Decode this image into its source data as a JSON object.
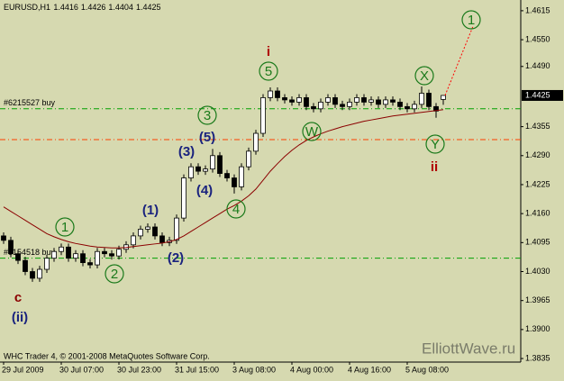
{
  "chart_data": {
    "type": "candlestick",
    "title": "EURUSD,H1",
    "categories": [
      "29 Jul 2009",
      null,
      null,
      null,
      null,
      null,
      null,
      null,
      "30 Jul 07:00",
      null,
      null,
      null,
      null,
      null,
      null,
      null,
      "30 Jul 23:00",
      null,
      null,
      null,
      null,
      null,
      null,
      null,
      "31 Jul 15:00",
      null,
      null,
      null,
      null,
      null,
      null,
      null,
      "3 Aug 08:00",
      null,
      null,
      null,
      null,
      null,
      null,
      null,
      "4 Aug 00:00",
      null,
      null,
      null,
      null,
      null,
      null,
      null,
      "4 Aug 16:00",
      null,
      null,
      null,
      null,
      null,
      null,
      null,
      "5 Aug 08:00",
      null,
      null,
      null,
      null,
      null
    ],
    "open": [
      1.411,
      1.41,
      1.407,
      1.4055,
      1.403,
      1.4015,
      1.4035,
      1.406,
      1.4075,
      1.4085,
      1.406,
      1.407,
      1.405,
      1.4045,
      1.4075,
      1.407,
      1.4065,
      1.408,
      1.409,
      1.411,
      1.4125,
      1.413,
      1.411,
      1.4095,
      1.41,
      1.415,
      1.424,
      1.4265,
      1.4255,
      1.426,
      1.429,
      1.425,
      1.424,
      1.422,
      1.4265,
      1.43,
      1.434,
      1.442,
      1.4435,
      1.442,
      1.4415,
      1.441,
      1.442,
      1.44,
      1.4395,
      1.441,
      1.442,
      1.4405,
      1.44,
      1.441,
      1.442,
      1.441,
      1.4415,
      1.4405,
      1.4415,
      1.441,
      1.44,
      1.4395,
      1.4405,
      1.443,
      1.44,
      1.4416
    ],
    "high": [
      1.4118,
      1.4108,
      1.4078,
      1.4063,
      1.4038,
      1.4043,
      1.4068,
      1.4083,
      1.4093,
      1.4093,
      1.4078,
      1.4078,
      1.4058,
      1.4083,
      1.4083,
      1.4078,
      1.4088,
      1.4098,
      1.4118,
      1.4133,
      1.4138,
      1.4138,
      1.4118,
      1.4108,
      1.4158,
      1.4248,
      1.4273,
      1.4273,
      1.4268,
      1.4305,
      1.4298,
      1.4258,
      1.4248,
      1.4273,
      1.4308,
      1.4348,
      1.4428,
      1.4443,
      1.4443,
      1.4428,
      1.4423,
      1.4428,
      1.4428,
      1.4408,
      1.4418,
      1.4428,
      1.4428,
      1.4413,
      1.4418,
      1.4428,
      1.4428,
      1.4423,
      1.4423,
      1.4423,
      1.4423,
      1.4418,
      1.4408,
      1.4413,
      1.4445,
      1.4438,
      1.4408,
      1.4426
    ],
    "low": [
      1.4092,
      1.4062,
      1.4047,
      1.4022,
      1.4007,
      1.4007,
      1.4027,
      1.4052,
      1.4067,
      1.4052,
      1.4052,
      1.4042,
      1.4037,
      1.4037,
      1.4062,
      1.4057,
      1.4057,
      1.4072,
      1.4082,
      1.4102,
      1.4117,
      1.4102,
      1.4087,
      1.4087,
      1.4092,
      1.4142,
      1.4232,
      1.4247,
      1.4247,
      1.4252,
      1.4242,
      1.4232,
      1.4205,
      1.4212,
      1.4257,
      1.4292,
      1.4332,
      1.4412,
      1.4412,
      1.4407,
      1.4402,
      1.4402,
      1.4392,
      1.4387,
      1.4387,
      1.4402,
      1.4397,
      1.4392,
      1.4392,
      1.4402,
      1.4402,
      1.4402,
      1.4397,
      1.4397,
      1.4402,
      1.4392,
      1.4387,
      1.4387,
      1.4397,
      1.4392,
      1.4375,
      1.4404
    ],
    "close": [
      1.41,
      1.407,
      1.4055,
      1.403,
      1.4015,
      1.4035,
      1.406,
      1.4075,
      1.4085,
      1.406,
      1.407,
      1.405,
      1.4045,
      1.4075,
      1.407,
      1.4065,
      1.408,
      1.409,
      1.411,
      1.4125,
      1.413,
      1.411,
      1.4095,
      1.41,
      1.415,
      1.424,
      1.4265,
      1.4255,
      1.426,
      1.429,
      1.425,
      1.424,
      1.422,
      1.4265,
      1.43,
      1.434,
      1.442,
      1.4435,
      1.442,
      1.4415,
      1.441,
      1.442,
      1.44,
      1.4395,
      1.441,
      1.442,
      1.4405,
      1.44,
      1.441,
      1.442,
      1.441,
      1.4415,
      1.4405,
      1.4415,
      1.441,
      1.44,
      1.4395,
      1.4405,
      1.443,
      1.44,
      1.439,
      1.4425
    ],
    "candle_color": "#000000",
    "up_fill": "#ffffff",
    "moving_average": {
      "color": "#8b0000",
      "values": [
        1.4175,
        1.4165,
        1.4155,
        1.4145,
        1.4135,
        1.4125,
        1.4115,
        1.4108,
        1.4102,
        1.4097,
        1.4093,
        1.409,
        1.4087,
        1.4085,
        1.4084,
        1.4083,
        1.4083,
        1.4084,
        1.4086,
        1.4088,
        1.409,
        1.4092,
        1.4094,
        1.4097,
        1.4102,
        1.411,
        1.412,
        1.413,
        1.414,
        1.415,
        1.416,
        1.417,
        1.4178,
        1.4188,
        1.42,
        1.4215,
        1.4235,
        1.4255,
        1.4272,
        1.4288,
        1.4302,
        1.4314,
        1.4324,
        1.4332,
        1.4339,
        1.4345,
        1.435,
        1.4355,
        1.4359,
        1.4363,
        1.4367,
        1.437,
        1.4373,
        1.4376,
        1.4379,
        1.4381,
        1.4383,
        1.4385,
        1.4387,
        1.4389,
        1.4391,
        1.4393
      ]
    },
    "ylim": [
      1.3827,
      1.4635
    ],
    "yticks": [
      1.4615,
      {
        "value": 1.455,
        "label": "1.4550"
      },
      {
        "value": 1.449,
        "label": "1.4490"
      },
      1.4355,
      {
        "value": 1.429,
        "label": "1.4290"
      },
      1.4225,
      {
        "value": 1.416,
        "label": "1.4160"
      },
      1.4095,
      {
        "value": 1.403,
        "label": "1.4030"
      },
      1.3965,
      {
        "value": 1.39,
        "label": "1.3900"
      },
      1.3835
    ],
    "levels": [
      {
        "label": "#6215527 buy",
        "value": 1.4395,
        "color": "#00a000"
      },
      {
        "value": 1.4326,
        "color": "#ff4000"
      },
      {
        "label": "#6154518 buy",
        "value": 1.406,
        "color": "#00a000"
      }
    ],
    "projection": {
      "value": 1.458,
      "color": "#ff0000"
    },
    "annotations": [
      {
        "text": "c",
        "color": "#8b0000",
        "circled": false
      },
      {
        "text": "(ii)",
        "color": "#1a237e",
        "circled": false
      },
      {
        "text": "1",
        "color": "#1b7a1b",
        "circled": true
      },
      {
        "text": "2",
        "color": "#1b7a1b",
        "circled": true
      },
      {
        "text": "(1)",
        "color": "#1a237e",
        "circled": false
      },
      {
        "text": "(2)",
        "color": "#1a237e",
        "circled": false
      },
      {
        "text": "(3)",
        "color": "#1a237e",
        "circled": false
      },
      {
        "text": "(4)",
        "color": "#1a237e",
        "circled": false
      },
      {
        "text": "(5)",
        "color": "#1a237e",
        "circled": false
      },
      {
        "text": "3",
        "color": "#1b7a1b",
        "circled": true
      },
      {
        "text": "4",
        "color": "#1b7a1b",
        "circled": true
      },
      {
        "text": "5",
        "color": "#1b7a1b",
        "circled": true
      },
      {
        "text": "i",
        "color": "#b00000",
        "circled": false
      },
      {
        "text": "W",
        "color": "#1b7a1b",
        "circled": true
      },
      {
        "text": "X",
        "color": "#1b7a1b",
        "circled": true
      },
      {
        "text": "Y",
        "color": "#1b7a1b",
        "circled": true
      },
      {
        "text": "ii",
        "color": "#b00000",
        "circled": false
      },
      {
        "text": "1",
        "color": "#1b7a1b",
        "circled": true
      }
    ],
    "credits": "WHC Trader 4, © 2001-2008 MetaQuotes Software Corp.",
    "watermark": "ElliottWave.ru"
  }
}
